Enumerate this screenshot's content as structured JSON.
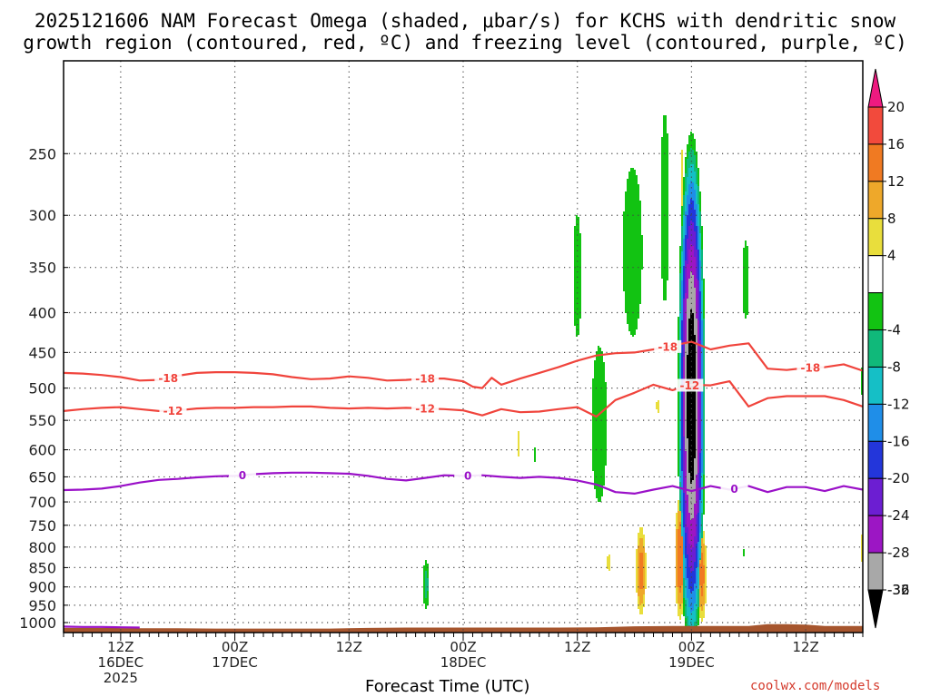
{
  "title": {
    "line1": "2025121606 NAM Forecast Omega (shaded, μbar/s) for KCHS with dendritic snow",
    "line2": "growth region (contoured, red, ºC) and freezing level (contoured, purple, ºC)"
  },
  "credit": "coolwx.com/models",
  "chart_data": {
    "type": "time-height cross section",
    "title": "2025121606 NAM Forecast Omega (shaded, μbar/s) for KCHS with dendritic snow growth region (contoured, red, ºC) and freezing level (contoured, purple, ºC)",
    "xlabel": "Forecast Time (UTC)",
    "x_unit": "hours since 2025-12-16 06Z",
    "xlim": [
      0,
      84
    ],
    "x_ticks": [
      {
        "x": 6,
        "line1": "12Z",
        "line2": "16DEC",
        "line3": "2025"
      },
      {
        "x": 18,
        "line1": "00Z",
        "line2": "17DEC",
        "line3": ""
      },
      {
        "x": 30,
        "line1": "12Z",
        "line2": "",
        "line3": ""
      },
      {
        "x": 42,
        "line1": "00Z",
        "line2": "18DEC",
        "line3": ""
      },
      {
        "x": 54,
        "line1": "12Z",
        "line2": "",
        "line3": ""
      },
      {
        "x": 66,
        "line1": "00Z",
        "line2": "19DEC",
        "line3": ""
      },
      {
        "x": 78,
        "line1": "12Z",
        "line2": "",
        "line3": ""
      }
    ],
    "ylabel": "",
    "y_unit": "hPa",
    "y_scale": "log",
    "ylim": [
      1030,
      190
    ],
    "y_ticks": [
      250,
      300,
      350,
      400,
      450,
      500,
      550,
      600,
      650,
      700,
      750,
      800,
      850,
      900,
      950,
      1000
    ],
    "grid": "dotted",
    "colorbar": {
      "labels": [
        "20",
        "16",
        "12",
        "8",
        "4",
        "-4",
        "-8",
        "-12",
        "-16",
        "-20",
        "-24",
        "-28",
        "-32",
        "-36"
      ],
      "bins": [
        {
          "lo": 20,
          "hi": null,
          "color": "#ee1a80"
        },
        {
          "lo": 16,
          "hi": 20,
          "color": "#f24a3c"
        },
        {
          "lo": 12,
          "hi": 16,
          "color": "#f07a22"
        },
        {
          "lo": 8,
          "hi": 12,
          "color": "#eea82a"
        },
        {
          "lo": 4,
          "hi": 8,
          "color": "#e9de3c"
        },
        {
          "lo": -4,
          "hi": 4,
          "color": "#ffffff"
        },
        {
          "lo": -8,
          "hi": -4,
          "color": "#12c312"
        },
        {
          "lo": -12,
          "hi": -8,
          "color": "#10b97a"
        },
        {
          "lo": -16,
          "hi": -12,
          "color": "#15bfc6"
        },
        {
          "lo": -20,
          "hi": -16,
          "color": "#1f8ee8"
        },
        {
          "lo": -24,
          "hi": -20,
          "color": "#2336da"
        },
        {
          "lo": -28,
          "hi": -24,
          "color": "#6c1ed2"
        },
        {
          "lo": -32,
          "hi": -28,
          "color": "#9c16c4"
        },
        {
          "lo": -36,
          "hi": -32,
          "color": "#a8a8a8"
        },
        {
          "lo": null,
          "hi": -36,
          "color": "#000000"
        }
      ]
    },
    "omega_features": [
      {
        "x": 54,
        "p_top": 280,
        "p_bot": 460,
        "halfwidth_h": 0.6,
        "peak": -6
      },
      {
        "x": 56.3,
        "p_top": 430,
        "p_bot": 720,
        "halfwidth_h": 0.9,
        "peak": -8
      },
      {
        "x": 59.8,
        "p_top": 238,
        "p_bot": 470,
        "halfwidth_h": 1.4,
        "peak": -6
      },
      {
        "x": 63.2,
        "p_top": 200,
        "p_bot": 430,
        "halfwidth_h": 0.6,
        "peak": -6
      },
      {
        "x": 66,
        "p_top": 268,
        "p_bot": 980,
        "halfwidth_h": 1.2,
        "peak": -40
      },
      {
        "x": 71.7,
        "p_top": 310,
        "p_bot": 425,
        "halfwidth_h": 0.5,
        "peak": -6
      },
      {
        "x": 38.1,
        "p_top": 830,
        "p_bot": 960,
        "halfwidth_h": 0.35,
        "peak": -10
      },
      {
        "x": 49.6,
        "p_top": 590,
        "p_bot": 630,
        "halfwidth_h": 0.15,
        "peak": -6
      },
      {
        "x": 60.7,
        "p_top": 760,
        "p_bot": 970,
        "halfwidth_h": 0.5,
        "peak": 14
      },
      {
        "x": 64.8,
        "p_top": 700,
        "p_bot": 975,
        "halfwidth_h": 0.5,
        "peak": 16
      },
      {
        "x": 67.1,
        "p_top": 760,
        "p_bot": 990,
        "halfwidth_h": 0.45,
        "peak": 14
      },
      {
        "x": 57.3,
        "p_top": 800,
        "p_bot": 880,
        "halfwidth_h": 0.3,
        "peak": 5
      },
      {
        "x": 84,
        "p_top": 740,
        "p_bot": 870,
        "halfwidth_h": 0.35,
        "peak": 5
      },
      {
        "x": 84,
        "p_top": 460,
        "p_bot": 520,
        "halfwidth_h": 0.3,
        "peak": -6
      },
      {
        "x": 47.8,
        "p_top": 550,
        "p_bot": 630,
        "halfwidth_h": 0.15,
        "peak": 5
      },
      {
        "x": 65,
        "p_top": 230,
        "p_bot": 320,
        "halfwidth_h": 0.3,
        "peak": 5
      },
      {
        "x": 71.5,
        "p_top": 800,
        "p_bot": 825,
        "halfwidth_h": 0.2,
        "peak": -6
      },
      {
        "x": 62.5,
        "p_top": 510,
        "p_bot": 545,
        "halfwidth_h": 0.35,
        "peak": 5
      }
    ],
    "contours": [
      {
        "label": "-18",
        "color": "#f0443c",
        "x": [
          0,
          2,
          4,
          6,
          8,
          10,
          12,
          14,
          16,
          18,
          20,
          22,
          24,
          26,
          28,
          30,
          32,
          34,
          36,
          38,
          40,
          42,
          43,
          44,
          45,
          46,
          48,
          50,
          52,
          54,
          56,
          58,
          60,
          62,
          64,
          66,
          68,
          70,
          72,
          74,
          76,
          78,
          80,
          82,
          84
        ],
        "p": [
          478,
          479,
          481,
          484,
          489,
          488,
          482,
          478,
          477,
          477,
          478,
          480,
          484,
          487,
          486,
          483,
          485,
          489,
          488,
          486,
          486,
          490,
          498,
          500,
          485,
          495,
          486,
          478,
          470,
          461,
          454,
          451,
          450,
          446,
          441,
          436,
          446,
          441,
          438,
          472,
          474,
          471,
          470,
          466,
          475
        ],
        "label_x": [
          11,
          38,
          63.5,
          78.5
        ]
      },
      {
        "label": "-12",
        "color": "#f0443c",
        "x": [
          0,
          2,
          4,
          6,
          8,
          10,
          12,
          14,
          16,
          18,
          20,
          22,
          24,
          26,
          28,
          30,
          32,
          34,
          36,
          38,
          40,
          42,
          44,
          46,
          48,
          50,
          52,
          54,
          56,
          58,
          60,
          62,
          64,
          66,
          68,
          70,
          72,
          74,
          76,
          78,
          80,
          82,
          84
        ],
        "p": [
          535,
          532,
          530,
          529,
          532,
          535,
          534,
          531,
          530,
          530,
          529,
          529,
          528,
          528,
          530,
          531,
          530,
          531,
          530,
          531,
          532,
          534,
          542,
          532,
          537,
          536,
          532,
          529,
          544,
          518,
          507,
          495,
          503,
          495,
          496,
          490,
          528,
          515,
          512,
          512,
          512,
          518,
          528
        ],
        "label_x": [
          11.5,
          38,
          65.8
        ]
      },
      {
        "label": "0",
        "color": "#9a10c8",
        "x": [
          0,
          2,
          4,
          6,
          8,
          10,
          12,
          14,
          16,
          18,
          20,
          22,
          24,
          26,
          28,
          30,
          32,
          34,
          36,
          38,
          40,
          42,
          44,
          46,
          48,
          50,
          52,
          54,
          56,
          58,
          60,
          62,
          64,
          66,
          68,
          70,
          72,
          74,
          76,
          78,
          80,
          82,
          84
        ],
        "p": [
          676,
          675,
          673,
          668,
          661,
          656,
          654,
          651,
          649,
          648,
          645,
          643,
          642,
          642,
          643,
          644,
          648,
          654,
          657,
          652,
          647,
          648,
          647,
          650,
          652,
          650,
          652,
          657,
          665,
          680,
          683,
          675,
          668,
          678,
          668,
          675,
          668,
          680,
          670,
          670,
          678,
          668,
          675
        ],
        "label_x": [
          18.8,
          42.5,
          70.5
        ]
      },
      {
        "label": "",
        "color": "#9a10c8",
        "x": [
          0,
          2,
          4,
          6,
          8
        ],
        "p": [
          1012,
          1013,
          1013,
          1014,
          1015
        ]
      }
    ],
    "surface_pressure": {
      "x": [
        0,
        2,
        4,
        8,
        12,
        16,
        20,
        24,
        28,
        32,
        36,
        40,
        44,
        48,
        52,
        56,
        60,
        64,
        68,
        72,
        74,
        76,
        78,
        80,
        84
      ],
      "p": [
        1016,
        1016,
        1016,
        1017,
        1017,
        1018,
        1018,
        1018,
        1018,
        1016,
        1015,
        1015,
        1015,
        1015,
        1015,
        1014,
        1011,
        1010,
        1010,
        1010,
        1005,
        1005,
        1006,
        1010,
        1010
      ],
      "color": "#a6552d"
    }
  }
}
